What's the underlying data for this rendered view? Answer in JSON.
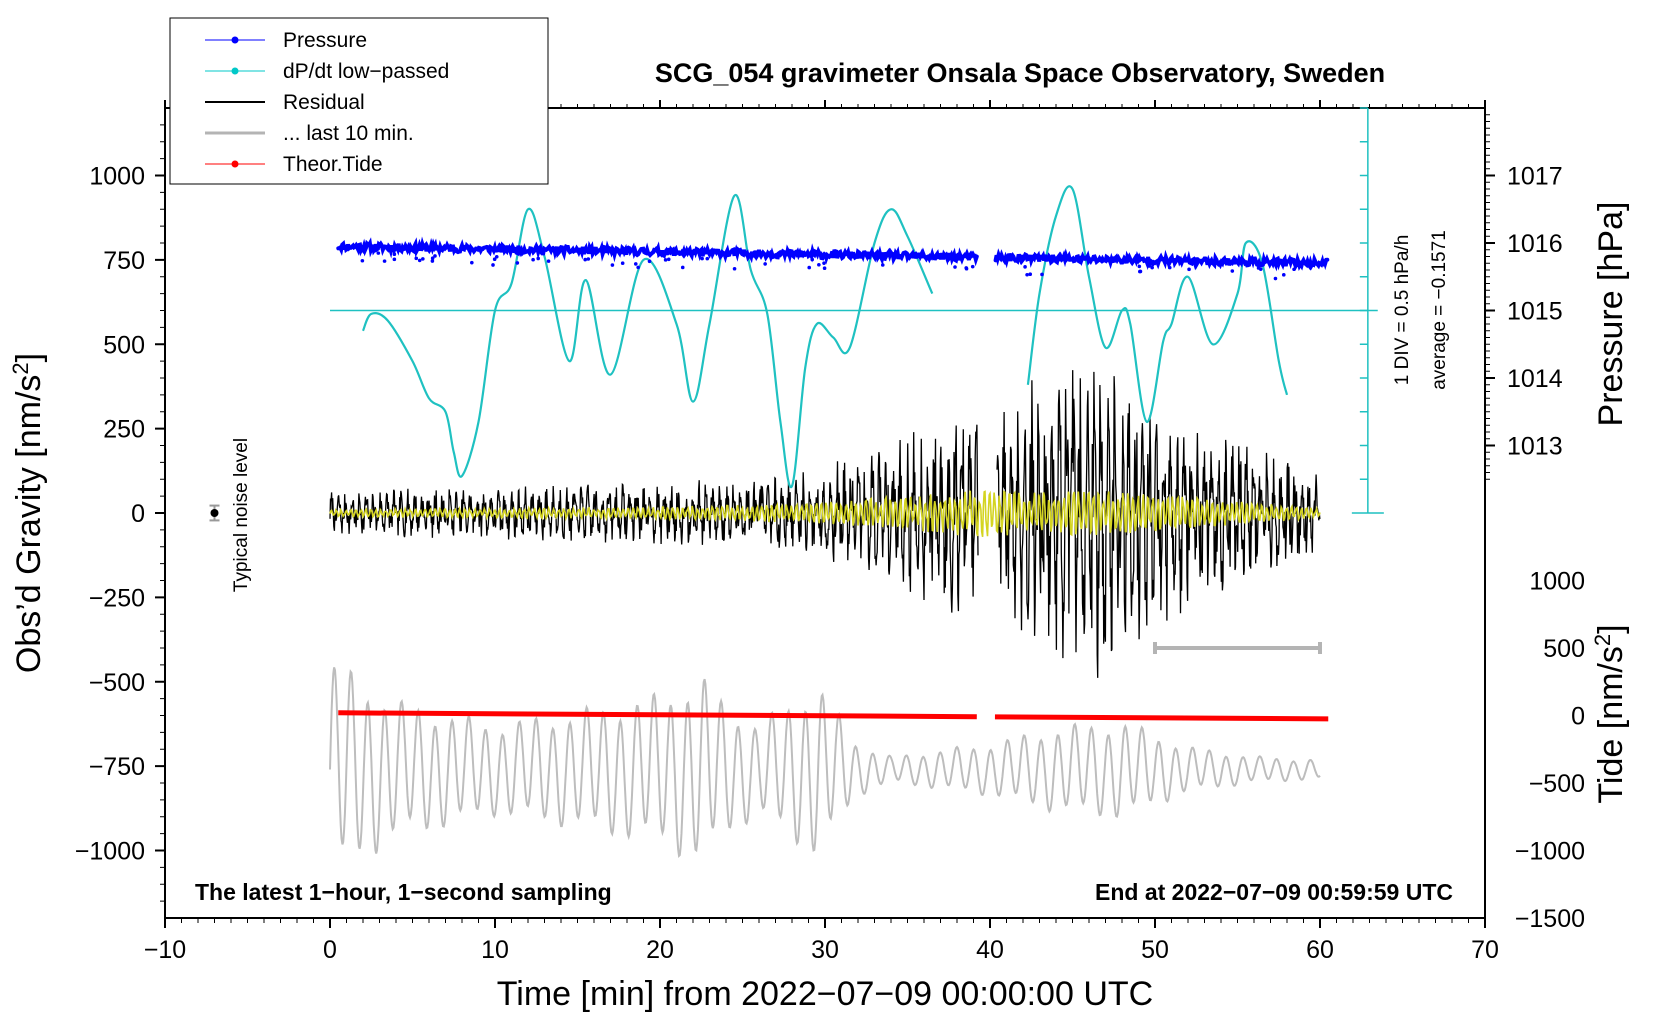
{
  "chart_data": {
    "type": "line",
    "title": "SCG_054 gravimeter Onsala Space Observatory, Sweden",
    "xlabel": "Time [min] from 2022−07−09 00:00:00 UTC",
    "ylabel_left": "Obs’d Gravity [nm/s",
    "ylabel_left_sup": "2",
    "ylabel_left_close": "]",
    "ylabel_pressure": "Pressure [hPa]",
    "ylabel_tide": "Tide [nm/s",
    "ylabel_tide_sup": "2",
    "ylabel_tide_close": "]",
    "xlim": [
      -10,
      70
    ],
    "ylim_left": [
      -1200,
      1200
    ],
    "xticks": [
      {
        "v": -10,
        "label": "−10"
      },
      {
        "v": 0,
        "label": "0"
      },
      {
        "v": 10,
        "label": "10"
      },
      {
        "v": 20,
        "label": "20"
      },
      {
        "v": 30,
        "label": "30"
      },
      {
        "v": 40,
        "label": "40"
      },
      {
        "v": 50,
        "label": "50"
      },
      {
        "v": 60,
        "label": "60"
      },
      {
        "v": 70,
        "label": "70"
      }
    ],
    "yticks_left": [
      {
        "v": 1000,
        "label": "1000"
      },
      {
        "v": 750,
        "label": "750"
      },
      {
        "v": 500,
        "label": "500"
      },
      {
        "v": 250,
        "label": "250"
      },
      {
        "v": 0,
        "label": "0"
      },
      {
        "v": -250,
        "label": "−250"
      },
      {
        "v": -500,
        "label": "−500"
      },
      {
        "v": -750,
        "label": "−750"
      },
      {
        "v": -1000,
        "label": "−1000"
      }
    ],
    "pressure_axis": {
      "mapping": {
        "hpa_1015_at_left": 600,
        "left_units_per_hpa": 200
      },
      "ticks": [
        {
          "v": 1017,
          "label": "1017"
        },
        {
          "v": 1016,
          "label": "1016"
        },
        {
          "v": 1015,
          "label": "1015"
        },
        {
          "v": 1014,
          "label": "1014"
        },
        {
          "v": 1013,
          "label": "1013"
        }
      ]
    },
    "tide_axis": {
      "mapping": {
        "tide_0_at_left": -600,
        "left_units_per_tide": 0.4
      },
      "ticks": [
        {
          "v": 1000,
          "label": "1000"
        },
        {
          "v": 500,
          "label": "500"
        },
        {
          "v": 0,
          "label": "0"
        },
        {
          "v": -500,
          "label": "−500"
        },
        {
          "v": -1000,
          "label": "−1000"
        },
        {
          "v": -1500,
          "label": "−1500"
        }
      ]
    },
    "legend": [
      {
        "name": "Pressure",
        "color": "#0000ff",
        "marker": true,
        "lw": 1
      },
      {
        "name": "dP/dt low−passed",
        "color": "#00c8c8",
        "marker": true,
        "lw": 1
      },
      {
        "name": "Residual",
        "color": "#000000",
        "marker": false,
        "lw": 2
      },
      {
        "name": "... last 10 min.",
        "color": "#b4b4b4",
        "marker": false,
        "lw": 3
      },
      {
        "name": "Theor.Tide",
        "color": "#ff0000",
        "marker": true,
        "lw": 1
      }
    ],
    "series": [
      {
        "name": "Pressure",
        "color": "#0000ff",
        "x_range": [
          0.5,
          60.5
        ],
        "gap": [
          39.2,
          40.3
        ],
        "start_value": 790,
        "end_value": 740
      },
      {
        "name": "dP/dt low−passed",
        "color": "#1fc1c1",
        "baseline_left": 600,
        "segments": [
          {
            "x": [
              2.0,
              2.5,
              3.5,
              5.0,
              6.0,
              7.0,
              7.5,
              8.0,
              9.0,
              10.0,
              11.0,
              12.0,
              13.0,
              14.5,
              15.5,
              17.0,
              19.0,
              21.0,
              22.0,
              23.0,
              24.5,
              25.5,
              26.5,
              27.3,
              28.0,
              28.8,
              29.5,
              30.5,
              31.5,
              33.0,
              34.0,
              35.0,
              36.5
            ],
            "y": [
              540,
              590,
              570,
              450,
              340,
              300,
              180,
              110,
              270,
              600,
              680,
              900,
              760,
              450,
              690,
              410,
              750,
              560,
              330,
              560,
              940,
              720,
              590,
              270,
              80,
              430,
              560,
              520,
              490,
              800,
              900,
              820,
              650
            ]
          },
          {
            "x": [
              42.3,
              43.0,
              44.0,
              45.0,
              46.0,
              47.0,
              48.0,
              48.5,
              49.5,
              50.5,
              51.0,
              52.0,
              53.5,
              55.0,
              55.5,
              56.5,
              57.5,
              58.0
            ],
            "y": [
              380,
              650,
              880,
              960,
              700,
              490,
              600,
              560,
              270,
              510,
              560,
              700,
              500,
              650,
              800,
              740,
              450,
              350
            ]
          }
        ]
      },
      {
        "name": "Residual",
        "color": "#000000",
        "x_range": [
          0.0,
          60.0
        ],
        "gap": [
          39.3,
          40.4
        ],
        "amplitude_profile": {
          "x": [
            0,
            20,
            28,
            33,
            37,
            39,
            41,
            43,
            45,
            47,
            49,
            52,
            56,
            60
          ],
          "a": [
            60,
            85,
            100,
            180,
            260,
            310,
            290,
            390,
            420,
            460,
            380,
            270,
            200,
            110
          ]
        }
      },
      {
        "name": "Residual (yellow overlay)",
        "color": "#d4d422",
        "x_range": [
          0.0,
          60.0
        ],
        "amplitude_profile": {
          "x": [
            0,
            20,
            30,
            37,
            39,
            42,
            46,
            50,
            56,
            60
          ],
          "a": [
            12,
            20,
            35,
            65,
            80,
            70,
            75,
            60,
            35,
            15
          ]
        }
      },
      {
        "name": "... last 10 min.",
        "color": "#bdbdbd",
        "x_range": [
          0.0,
          60.0
        ],
        "center_left": -760,
        "amplitude_profile": {
          "x": [
            0,
            4,
            10,
            14,
            17,
            20,
            22.5,
            24,
            26,
            29.5,
            32,
            34,
            37,
            40,
            44,
            48,
            52,
            56,
            60
          ],
          "a": [
            340,
            210,
            140,
            170,
            200,
            230,
            290,
            200,
            140,
            270,
            80,
            40,
            60,
            80,
            130,
            150,
            70,
            40,
            30
          ]
        }
      },
      {
        "name": "Theor.Tide",
        "color": "#ff0000",
        "x_range": [
          0.5,
          60.5
        ],
        "gap": [
          39.2,
          40.3
        ],
        "start_value": 20,
        "end_value": -25
      }
    ],
    "noise_marker": {
      "x": -7,
      "y": 0,
      "err": 22,
      "label": "Typical noise level"
    },
    "divider_scale": {
      "x": 62.9,
      "y_range": [
        0,
        1200
      ],
      "label_1": "1 DIV = 0.5 hPa/h",
      "label_2": "average = −0.1571",
      "color": "#1fc1c1"
    },
    "last10_bar": {
      "x_range": [
        50,
        60
      ],
      "y": -400,
      "color": "#b4b4b4"
    },
    "annotations": {
      "left": "The latest 1−hour, 1−second sampling",
      "right": "End at 2022−07−09 00:59:59 UTC"
    }
  }
}
